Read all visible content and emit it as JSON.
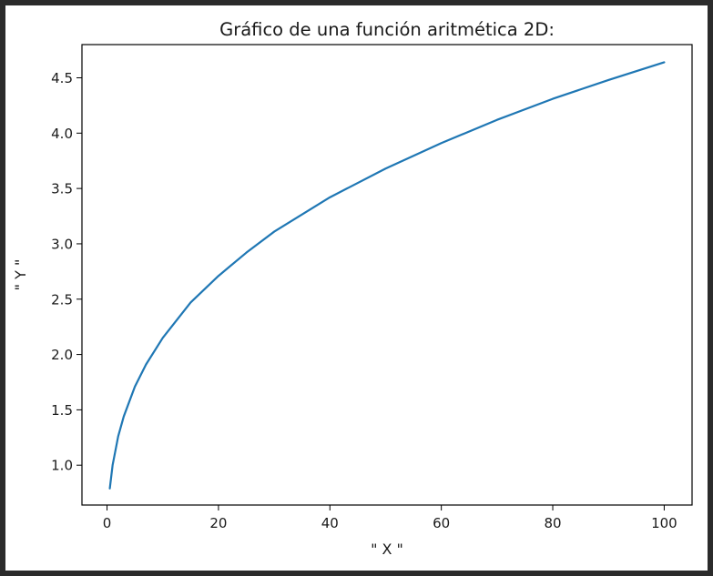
{
  "chart_data": {
    "type": "line",
    "title": "Gráfico de una función aritmética 2D:",
    "xlabel": "\" X \"",
    "ylabel": "\" Y \"",
    "xlim": [
      -4.5,
      105
    ],
    "ylim": [
      0.64,
      4.8
    ],
    "x_ticks": [
      0,
      20,
      40,
      60,
      80,
      100
    ],
    "y_ticks": [
      1.0,
      1.5,
      2.0,
      2.5,
      3.0,
      3.5,
      4.0,
      4.5
    ],
    "x_tick_labels": [
      "0",
      "20",
      "40",
      "60",
      "80",
      "100"
    ],
    "y_tick_labels": [
      "1.0",
      "1.5",
      "2.0",
      "2.5",
      "3.0",
      "3.5",
      "4.0",
      "4.5"
    ],
    "grid": false,
    "series": [
      {
        "color": "#1f77b4",
        "x": [
          0.5,
          1,
          2,
          3,
          5,
          7,
          10,
          15,
          20,
          25,
          30,
          40,
          50,
          60,
          70,
          80,
          90,
          100
        ],
        "y": [
          0.79,
          1.0,
          1.26,
          1.44,
          1.71,
          1.91,
          2.15,
          2.47,
          2.71,
          2.92,
          3.11,
          3.42,
          3.68,
          3.91,
          4.12,
          4.31,
          4.48,
          4.64
        ]
      }
    ]
  }
}
